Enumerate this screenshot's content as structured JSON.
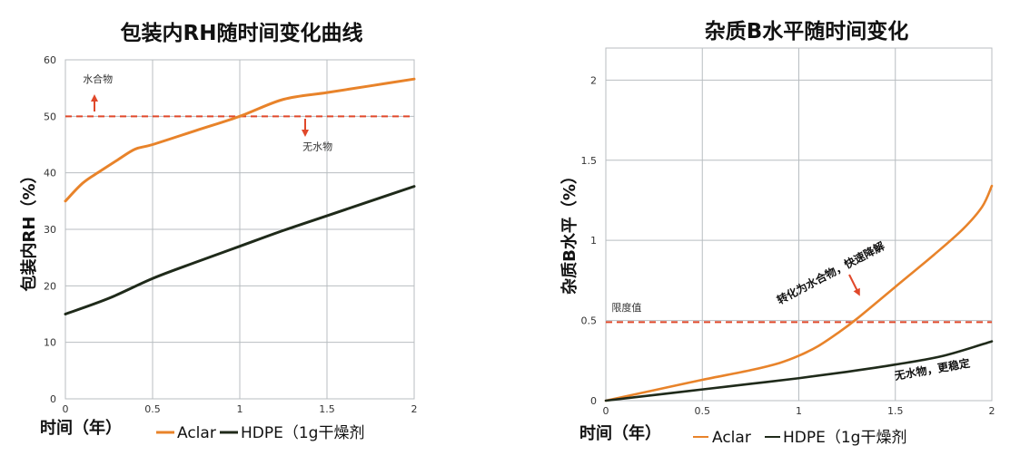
{
  "colors": {
    "aclar": "#E8832A",
    "hdpe": "#1F2A1A",
    "threshold": "#E0482A",
    "grid": "#B8BDC1"
  },
  "chart_data": [
    {
      "type": "line",
      "title": "包装内RH随时间变化曲线",
      "xlabel": "时间（年）",
      "ylabel": "包装内RH（%）",
      "xlim": [
        0,
        2
      ],
      "ylim": [
        0,
        60
      ],
      "xticks": [
        {
          "v": 0,
          "label": "0"
        },
        {
          "v": 0.5,
          "label": "0.5"
        },
        {
          "v": 1,
          "label": "1"
        },
        {
          "v": 1.5,
          "label": "1.5"
        },
        {
          "v": 2,
          "label": "2"
        }
      ],
      "yticks": [
        {
          "v": 0,
          "label": "0"
        },
        {
          "v": 10,
          "label": "10"
        },
        {
          "v": 20,
          "label": "20"
        },
        {
          "v": 30,
          "label": "30"
        },
        {
          "v": 40,
          "label": "40"
        },
        {
          "v": 50,
          "label": "50"
        },
        {
          "v": 60,
          "label": "60"
        }
      ],
      "grid": true,
      "legend_position": "bottom",
      "series": [
        {
          "name": "Aclar",
          "color_key": "aclar",
          "x": [
            0,
            0.1,
            0.2,
            0.3,
            0.4,
            0.5,
            0.75,
            1.0,
            1.25,
            1.5,
            1.75,
            2.0
          ],
          "y": [
            35,
            38.2,
            40.3,
            42.3,
            44.2,
            45.0,
            47.5,
            50.0,
            53.0,
            54.2,
            55.4,
            56.6
          ]
        },
        {
          "name": "HDPE（1g干燥剂",
          "color_key": "hdpe",
          "x": [
            0,
            0.25,
            0.5,
            0.75,
            1.0,
            1.25,
            1.5,
            1.75,
            2.0
          ],
          "y": [
            15,
            17.8,
            21.3,
            24.2,
            27.0,
            29.8,
            32.4,
            35.0,
            37.6
          ]
        }
      ],
      "threshold": {
        "y": 50
      },
      "annotations": [
        {
          "text": "水合物",
          "x": 0.1,
          "y": 56,
          "arrow": "up"
        },
        {
          "text": "无水物",
          "x": 1.36,
          "y": 44,
          "arrow": "down"
        }
      ]
    },
    {
      "type": "line",
      "title": "杂质B水平随时间变化",
      "xlabel": "时间（年）",
      "ylabel": "杂质B水平（%）",
      "xlim": [
        0,
        2
      ],
      "ylim": [
        0,
        2.2
      ],
      "xticks": [
        {
          "v": 0,
          "label": "0"
        },
        {
          "v": 0.5,
          "label": "0.5"
        },
        {
          "v": 1,
          "label": "1"
        },
        {
          "v": 1.5,
          "label": "1.5"
        },
        {
          "v": 2,
          "label": "2"
        }
      ],
      "yticks": [
        {
          "v": 0,
          "label": "0"
        },
        {
          "v": 0.5,
          "label": "0.5"
        },
        {
          "v": 1,
          "label": "1"
        },
        {
          "v": 1.5,
          "label": "1.5"
        },
        {
          "v": 2,
          "label": "2"
        }
      ],
      "grid": true,
      "legend_position": "bottom",
      "series": [
        {
          "name": "Aclar",
          "color_key": "aclar",
          "x": [
            0,
            0.25,
            0.5,
            0.75,
            0.9,
            1.0,
            1.1,
            1.2,
            1.3,
            1.5,
            1.7,
            1.85,
            1.95,
            2.0
          ],
          "y": [
            0,
            0.065,
            0.13,
            0.19,
            0.235,
            0.28,
            0.34,
            0.42,
            0.51,
            0.71,
            0.91,
            1.07,
            1.21,
            1.34
          ]
        },
        {
          "name": "HDPE（1g干燥剂",
          "color_key": "hdpe",
          "x": [
            0,
            0.25,
            0.5,
            0.75,
            1.0,
            1.25,
            1.5,
            1.75,
            2.0
          ],
          "y": [
            0,
            0.035,
            0.07,
            0.105,
            0.14,
            0.18,
            0.225,
            0.28,
            0.37
          ]
        }
      ],
      "threshold": {
        "y": 0.49
      },
      "annotations": [
        {
          "text": "限度值",
          "x": 0.03,
          "y": 0.56,
          "arrow": "none"
        },
        {
          "text": "转化为水合物，快速降解",
          "x": 0.9,
          "y": 0.6,
          "arrow": "down-right",
          "rotate": -28
        },
        {
          "text": "无水物，更稳定",
          "x": 1.5,
          "y": 0.13,
          "arrow": "none",
          "rotate": -10
        }
      ]
    }
  ]
}
